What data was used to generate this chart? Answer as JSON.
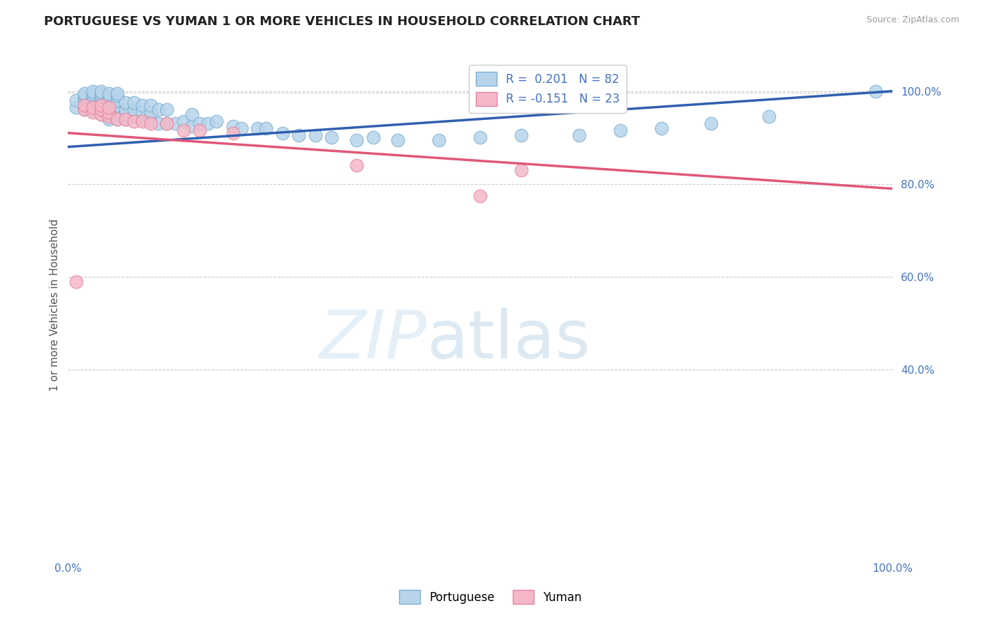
{
  "title": "PORTUGUESE VS YUMAN 1 OR MORE VEHICLES IN HOUSEHOLD CORRELATION CHART",
  "source": "Source: ZipAtlas.com",
  "ylabel": "1 or more Vehicles in Household",
  "xlim": [
    0.0,
    1.0
  ],
  "ylim": [
    0.0,
    1.08
  ],
  "yticks": [
    0.4,
    0.6,
    0.8,
    1.0
  ],
  "ytick_labels": [
    "40.0%",
    "60.0%",
    "80.0%",
    "100.0%"
  ],
  "xtick_labels": [
    "0.0%",
    "100.0%"
  ],
  "portuguese_color": "#b8d4ea",
  "portuguese_edge": "#7aafd4",
  "yuman_color": "#f4b8c8",
  "yuman_edge": "#e8829e",
  "portuguese_R": 0.201,
  "portuguese_N": 82,
  "yuman_R": -0.151,
  "yuman_N": 23,
  "trend_portuguese_color": "#3060b0",
  "trend_yuman_color": "#e05878",
  "legend_text_color": "#4472c4",
  "background_color": "#ffffff",
  "portuguese_x": [
    0.01,
    0.01,
    0.02,
    0.02,
    0.02,
    0.02,
    0.02,
    0.03,
    0.03,
    0.03,
    0.03,
    0.03,
    0.03,
    0.03,
    0.04,
    0.04,
    0.04,
    0.04,
    0.04,
    0.04,
    0.04,
    0.04,
    0.04,
    0.05,
    0.05,
    0.05,
    0.05,
    0.05,
    0.05,
    0.05,
    0.05,
    0.06,
    0.06,
    0.06,
    0.06,
    0.06,
    0.06,
    0.06,
    0.07,
    0.07,
    0.07,
    0.07,
    0.08,
    0.08,
    0.08,
    0.09,
    0.09,
    0.09,
    0.1,
    0.1,
    0.1,
    0.11,
    0.11,
    0.12,
    0.12,
    0.13,
    0.14,
    0.15,
    0.15,
    0.16,
    0.17,
    0.18,
    0.2,
    0.21,
    0.23,
    0.24,
    0.26,
    0.28,
    0.3,
    0.32,
    0.35,
    0.37,
    0.4,
    0.45,
    0.5,
    0.55,
    0.62,
    0.67,
    0.72,
    0.78,
    0.85,
    0.98
  ],
  "portuguese_y": [
    0.965,
    0.98,
    0.96,
    0.975,
    0.985,
    0.99,
    0.995,
    0.96,
    0.97,
    0.98,
    0.985,
    0.99,
    0.995,
    1.0,
    0.95,
    0.96,
    0.97,
    0.975,
    0.98,
    0.985,
    0.99,
    0.995,
    1.0,
    0.94,
    0.95,
    0.96,
    0.97,
    0.975,
    0.985,
    0.99,
    0.995,
    0.94,
    0.95,
    0.96,
    0.97,
    0.98,
    0.99,
    0.995,
    0.94,
    0.95,
    0.96,
    0.975,
    0.945,
    0.96,
    0.975,
    0.94,
    0.955,
    0.97,
    0.935,
    0.955,
    0.97,
    0.93,
    0.96,
    0.93,
    0.96,
    0.93,
    0.935,
    0.925,
    0.95,
    0.93,
    0.93,
    0.935,
    0.925,
    0.92,
    0.92,
    0.92,
    0.91,
    0.905,
    0.905,
    0.9,
    0.895,
    0.9,
    0.895,
    0.895,
    0.9,
    0.905,
    0.905,
    0.915,
    0.92,
    0.93,
    0.945,
    1.0
  ],
  "yuman_x": [
    0.01,
    0.02,
    0.02,
    0.03,
    0.03,
    0.04,
    0.04,
    0.04,
    0.05,
    0.05,
    0.05,
    0.06,
    0.07,
    0.08,
    0.09,
    0.1,
    0.12,
    0.14,
    0.16,
    0.2,
    0.35,
    0.5,
    0.55
  ],
  "yuman_y": [
    0.59,
    0.96,
    0.97,
    0.955,
    0.965,
    0.95,
    0.96,
    0.97,
    0.945,
    0.955,
    0.965,
    0.94,
    0.94,
    0.935,
    0.935,
    0.93,
    0.93,
    0.915,
    0.915,
    0.91,
    0.84,
    0.775,
    0.83
  ],
  "trend_port_x0": 0.0,
  "trend_port_y0": 0.88,
  "trend_port_x1": 1.0,
  "trend_port_y1": 1.0,
  "trend_yum_x0": 0.0,
  "trend_yum_y0": 0.91,
  "trend_yum_x1": 1.0,
  "trend_yum_y1": 0.79
}
